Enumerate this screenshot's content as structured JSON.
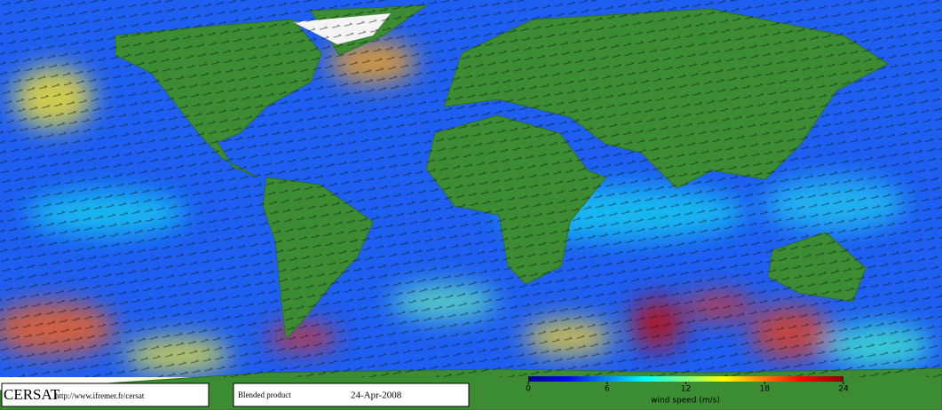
{
  "footer": {
    "brand": "CERSAT",
    "url": "http://www.ifremer.fr/cersat",
    "product": "Blended product",
    "date": "24-Apr-2008"
  },
  "colorbar": {
    "label": "wind speed (m/s)",
    "range": [
      0,
      24
    ],
    "ticks": [
      0,
      6,
      12,
      18,
      24
    ]
  }
}
